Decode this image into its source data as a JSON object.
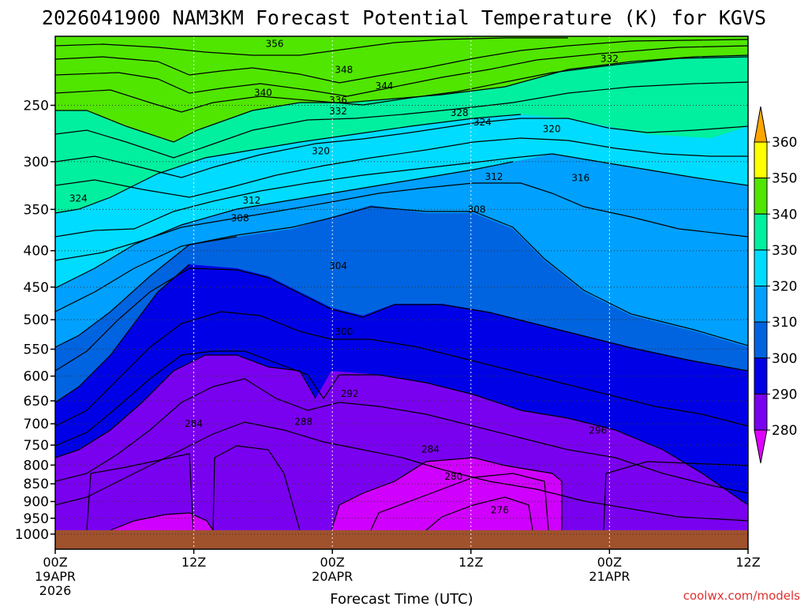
{
  "chart_data": {
    "type": "contour",
    "title": "2026041900 NAM3KM Forecast Potential Temperature (K) for KGVS",
    "xlabel": "Forecast Time (UTC)",
    "ylabel": "",
    "y_ticks": [
      250,
      300,
      350,
      400,
      450,
      500,
      550,
      600,
      650,
      700,
      750,
      800,
      850,
      900,
      950,
      1000
    ],
    "ylim_hpa": [
      1050,
      200
    ],
    "x_ticks": [
      {
        "hour": 0,
        "l1": "00Z",
        "l2": "19APR",
        "l3": "2026"
      },
      {
        "hour": 12,
        "l1": "12Z",
        "l2": "",
        "l3": ""
      },
      {
        "hour": 24,
        "l1": "00Z",
        "l2": "20APR",
        "l3": ""
      },
      {
        "hour": 36,
        "l1": "12Z",
        "l2": "",
        "l3": ""
      },
      {
        "hour": 48,
        "l1": "00Z",
        "l2": "21APR",
        "l3": ""
      },
      {
        "hour": 60,
        "l1": "12Z",
        "l2": "",
        "l3": ""
      }
    ],
    "xlim_hours": [
      0,
      60
    ],
    "colorbar": {
      "levels": [
        280,
        290,
        300,
        310,
        320,
        330,
        340,
        350,
        360
      ],
      "colors": [
        "#dd00ff",
        "#7a00f0",
        "#0000e6",
        "#0064e0",
        "#00a0ff",
        "#00dcff",
        "#00f0a0",
        "#50e600",
        "#ffff00",
        "#ffa500"
      ]
    },
    "contour_labels": [
      {
        "value": "356",
        "hour": 19.0,
        "hpa": 205
      },
      {
        "value": "348",
        "hour": 25.0,
        "hpa": 223
      },
      {
        "value": "344",
        "hour": 28.5,
        "hpa": 235
      },
      {
        "value": "340",
        "hour": 18.0,
        "hpa": 240
      },
      {
        "value": "336",
        "hour": 24.5,
        "hpa": 246
      },
      {
        "value": "332",
        "hour": 24.5,
        "hpa": 255
      },
      {
        "value": "332",
        "hour": 48.0,
        "hpa": 215
      },
      {
        "value": "328",
        "hour": 35.0,
        "hpa": 256
      },
      {
        "value": "324",
        "hour": 37.0,
        "hpa": 264
      },
      {
        "value": "320",
        "hour": 43.0,
        "hpa": 270
      },
      {
        "value": "320",
        "hour": 23.0,
        "hpa": 290
      },
      {
        "value": "324",
        "hour": 2.0,
        "hpa": 338
      },
      {
        "value": "312",
        "hour": 38.0,
        "hpa": 315
      },
      {
        "value": "316",
        "hour": 45.5,
        "hpa": 316
      },
      {
        "value": "312",
        "hour": 17.0,
        "hpa": 340
      },
      {
        "value": "308",
        "hour": 16.0,
        "hpa": 360
      },
      {
        "value": "308",
        "hour": 36.5,
        "hpa": 350
      },
      {
        "value": "304",
        "hour": 24.5,
        "hpa": 420
      },
      {
        "value": "300",
        "hour": 25.0,
        "hpa": 520
      },
      {
        "value": "292",
        "hour": 25.5,
        "hpa": 635
      },
      {
        "value": "288",
        "hour": 21.5,
        "hpa": 695
      },
      {
        "value": "284",
        "hour": 12.0,
        "hpa": 700
      },
      {
        "value": "284",
        "hour": 32.5,
        "hpa": 760
      },
      {
        "value": "280",
        "hour": 34.5,
        "hpa": 830
      },
      {
        "value": "296",
        "hour": 47.0,
        "hpa": 715
      },
      {
        "value": "276",
        "hour": 38.5,
        "hpa": 925
      }
    ]
  },
  "watermark": "coolwx.com/models"
}
